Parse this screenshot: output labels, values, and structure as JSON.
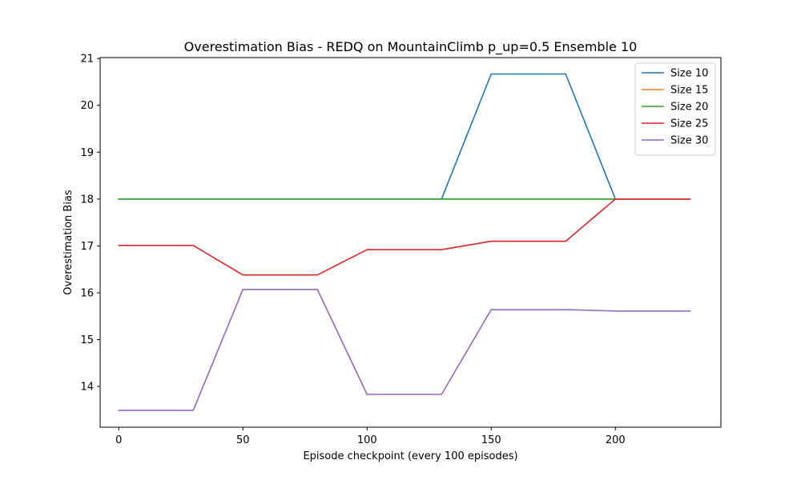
{
  "chart_data": {
    "type": "line",
    "title": "Overestimation Bias - REDQ on MountainClimb p_up=0.5 Ensemble 10",
    "xlabel": "Episode checkpoint (every 100 episodes)",
    "ylabel": "Overestimation Bias",
    "xlim": [
      -7.5,
      242.5
    ],
    "ylim": [
      13.13,
      21.02
    ],
    "xticks": [
      0,
      50,
      100,
      150,
      200
    ],
    "yticks": [
      14,
      15,
      16,
      17,
      18,
      19,
      20,
      21
    ],
    "x": [
      0,
      30,
      50,
      80,
      100,
      130,
      150,
      180,
      200,
      230
    ],
    "grid": false,
    "legend_position": "top-right",
    "series": [
      {
        "name": "Size 10",
        "color": "#1f77b4",
        "values": [
          18.0,
          18.0,
          18.0,
          18.0,
          18.0,
          18.0,
          20.67,
          20.67,
          18.0,
          18.0
        ]
      },
      {
        "name": "Size 15",
        "color": "#ff7f0e",
        "values": [
          18.0,
          18.0,
          18.0,
          18.0,
          18.0,
          18.0,
          18.0,
          18.0,
          18.0,
          18.0
        ]
      },
      {
        "name": "Size 20",
        "color": "#2ca02c",
        "values": [
          18.0,
          18.0,
          18.0,
          18.0,
          18.0,
          18.0,
          18.0,
          18.0,
          18.0,
          18.0
        ]
      },
      {
        "name": "Size 25",
        "color": "#d62728",
        "values": [
          17.01,
          17.01,
          16.38,
          16.38,
          16.92,
          16.92,
          17.1,
          17.1,
          18.0,
          18.0
        ]
      },
      {
        "name": "Size 30",
        "color": "#9467bd",
        "values": [
          13.49,
          13.49,
          16.07,
          16.07,
          13.83,
          13.83,
          15.64,
          15.64,
          15.61,
          15.61
        ]
      }
    ]
  }
}
